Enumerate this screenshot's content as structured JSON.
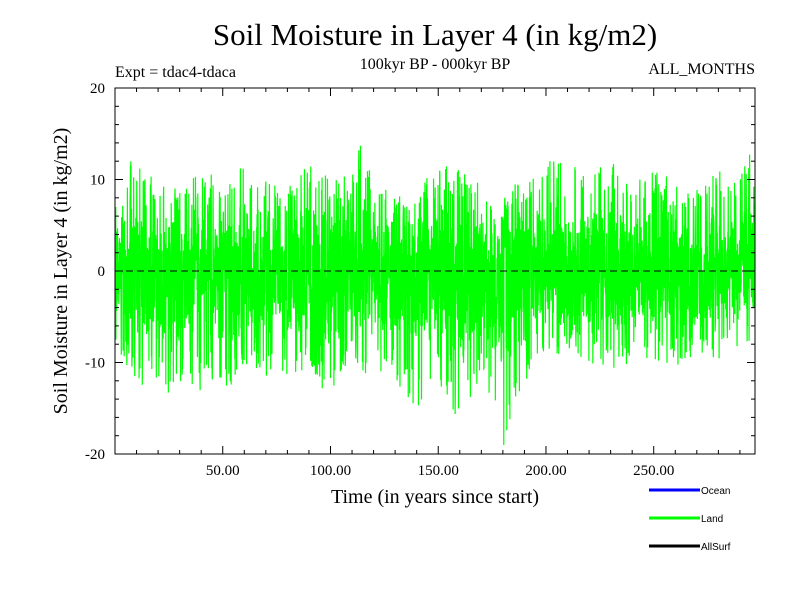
{
  "chart_data": {
    "type": "line",
    "title": "Soil Moisture in Layer 4 (in kg/m2)",
    "subtitle_left": "Expt = tdac4-tdaca",
    "subtitle_center": "100kyr BP - 000kyr BP",
    "subtitle_right": "ALL_MONTHS",
    "xlabel": "Time (in years since start)",
    "ylabel": "Soil Moisture in Layer 4 (in kg/m2)",
    "xlim": [
      0,
      297
    ],
    "ylim": [
      -20,
      20
    ],
    "x_ticks": [
      50,
      100,
      150,
      200,
      250
    ],
    "x_tick_labels": [
      "50.00",
      "100.00",
      "150.00",
      "200.00",
      "250.00"
    ],
    "y_ticks": [
      -20,
      -10,
      0,
      10,
      20
    ],
    "y_tick_labels": [
      "-20",
      "-10",
      "0",
      "10",
      "20"
    ],
    "zero_line": true,
    "legend": {
      "position": "bottom-right",
      "entries": [
        {
          "name": "Ocean",
          "color": "#0000ff"
        },
        {
          "name": "Land",
          "color": "#00ff00"
        },
        {
          "name": "AllSurf",
          "color": "#000000"
        }
      ]
    },
    "series": [
      {
        "name": "Land",
        "color": "#00ff00",
        "step_years": 1,
        "samples_per_year": 12,
        "envelope": {
          "x": [
            0,
            5,
            10,
            20,
            30,
            40,
            50,
            60,
            70,
            80,
            90,
            100,
            110,
            112,
            120,
            130,
            140,
            150,
            160,
            170,
            178,
            180,
            185,
            190,
            200,
            210,
            220,
            230,
            240,
            250,
            260,
            270,
            280,
            290,
            295,
            297
          ],
          "upper": [
            8,
            12,
            13,
            10,
            9,
            11,
            10,
            12,
            10,
            9,
            12,
            10,
            11,
            15,
            10,
            8,
            9,
            12,
            11,
            10,
            5,
            7,
            10,
            10,
            12,
            13,
            11,
            12,
            10,
            11,
            10,
            9,
            11,
            10,
            14,
            10
          ],
          "lower": [
            -8,
            -10,
            -13,
            -12,
            -15,
            -13,
            -14,
            -11,
            -12,
            -12,
            -11,
            -14,
            -9,
            -12,
            -11,
            -12,
            -15,
            -12,
            -17,
            -12,
            -15,
            -20,
            -15,
            -14,
            -10,
            -9,
            -10,
            -11,
            -10,
            -10,
            -11,
            -9,
            -10,
            -9,
            -8,
            -4
          ]
        }
      }
    ]
  }
}
